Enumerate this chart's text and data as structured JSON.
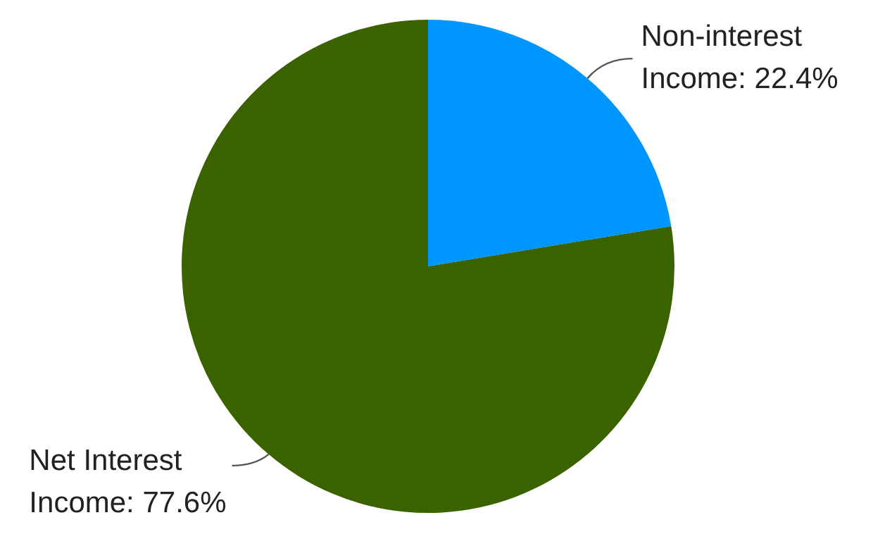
{
  "chart_data": {
    "type": "pie",
    "categories": [
      "Non-interest Income",
      "Net Interest Income"
    ],
    "values": [
      22.4,
      77.6
    ],
    "value_labels": [
      "22.4%",
      "77.6%"
    ],
    "colors": [
      "#0096ff",
      "#3a6300"
    ]
  }
}
